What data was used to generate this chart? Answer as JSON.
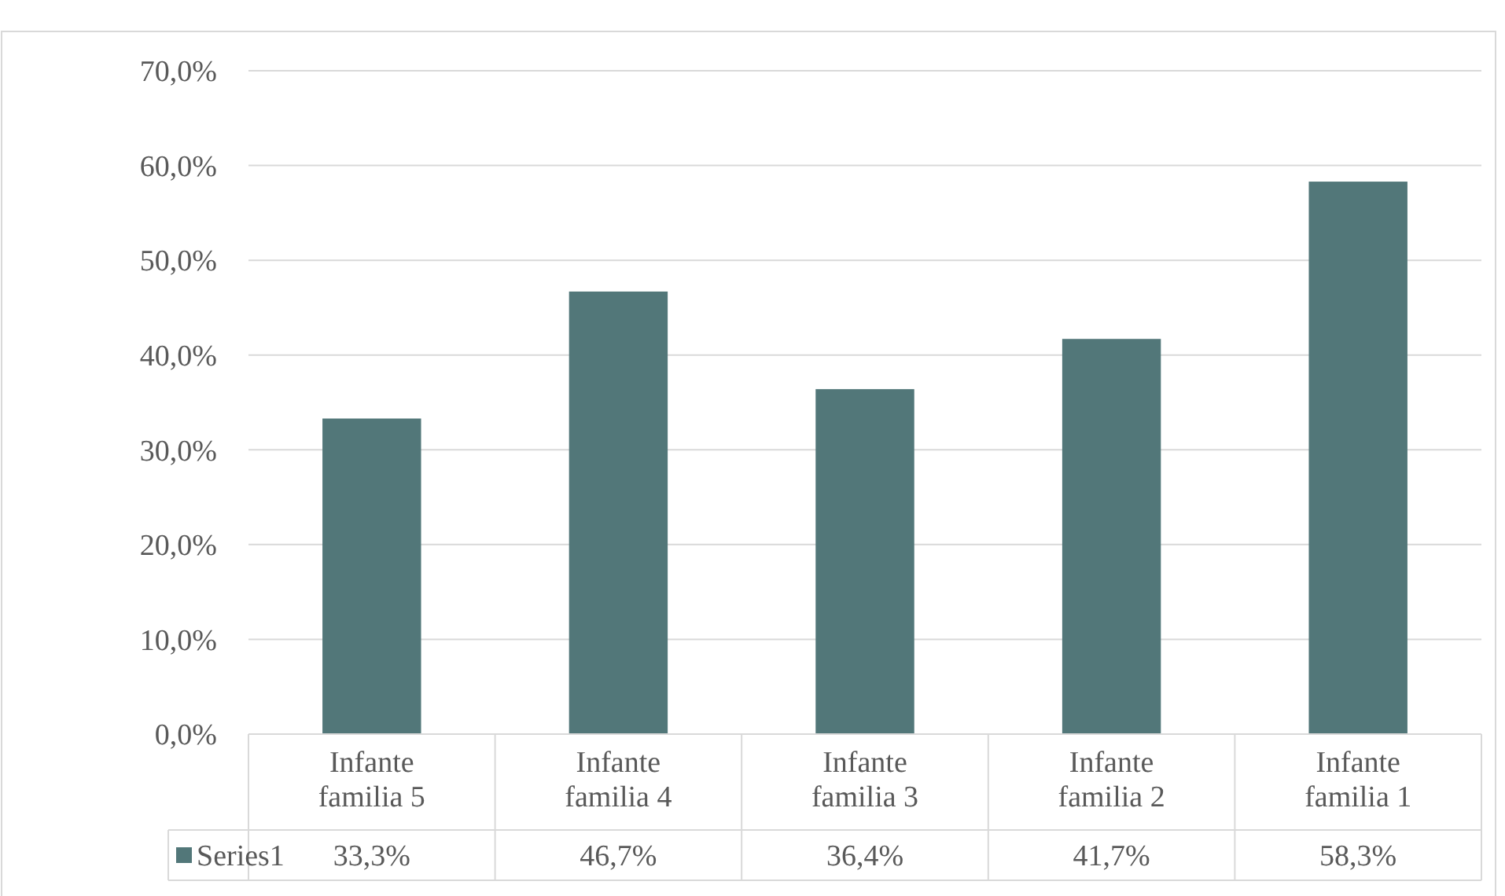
{
  "chart_data": {
    "type": "bar",
    "categories": [
      "Infante familia 5",
      "Infante familia 4",
      "Infante familia 3",
      "Infante familia 2",
      "Infante familia 1"
    ],
    "series": [
      {
        "name": "Series1",
        "color": "#527779",
        "values": [
          33.3,
          46.7,
          36.4,
          41.7,
          58.3
        ],
        "value_labels": [
          "33,3%",
          "46,7%",
          "36,4%",
          "41,7%",
          "58,3%"
        ]
      }
    ],
    "ylim": [
      0,
      70
    ],
    "yticks": [
      {
        "value": 0,
        "label": "0,0%"
      },
      {
        "value": 10,
        "label": "10,0%"
      },
      {
        "value": 20,
        "label": "20,0%"
      },
      {
        "value": 30,
        "label": "30,0%"
      },
      {
        "value": 40,
        "label": "40,0%"
      },
      {
        "value": 50,
        "label": "50,0%"
      },
      {
        "value": 60,
        "label": "60,0%"
      },
      {
        "value": 70,
        "label": "70,0%"
      }
    ],
    "grid": "y",
    "legend": "bottom"
  }
}
